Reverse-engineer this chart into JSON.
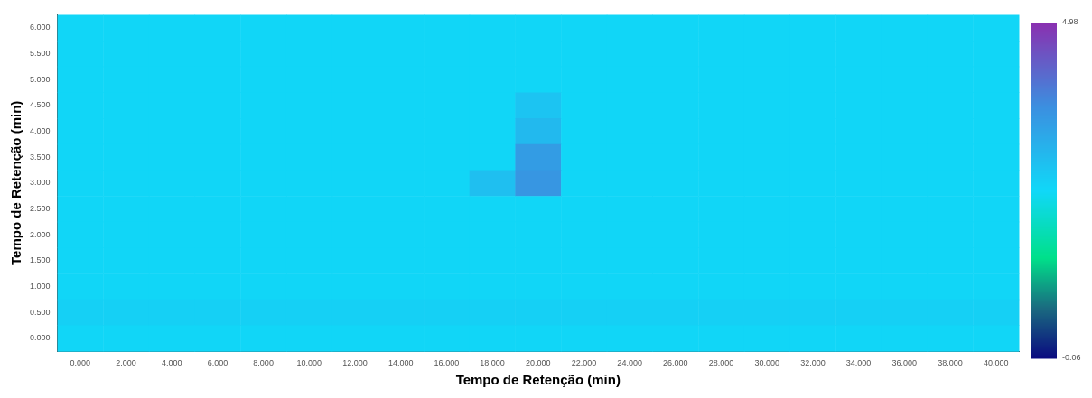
{
  "chart_data": {
    "type": "heatmap",
    "xlabel": "Tempo de Retenção (min)",
    "ylabel": "Tempo de Retenção (min)",
    "categories": [
      "0.000",
      "2.000",
      "4.000",
      "6.000",
      "8.000",
      "10.000",
      "12.000",
      "14.000",
      "16.000",
      "18.000",
      "20.000",
      "22.000",
      "24.000",
      "26.000",
      "28.000",
      "30.000",
      "32.000",
      "34.000",
      "36.000",
      "38.000",
      "40.000"
    ],
    "y_categories": [
      "6.000",
      "5.500",
      "5.000",
      "4.500",
      "4.000",
      "3.500",
      "3.000",
      "2.500",
      "2.000",
      "1.500",
      "1.000",
      "0.500",
      "0.000"
    ],
    "clim": [
      -0.06,
      4.98
    ],
    "cticks": [
      -0.06,
      4.98
    ],
    "cells": [
      [
        2.5,
        2.5,
        2.5,
        2.5,
        2.5,
        2.5,
        2.5,
        2.5,
        2.5,
        2.5,
        2.5,
        2.5,
        2.5,
        2.5,
        2.5,
        2.5,
        2.5,
        2.5,
        2.5,
        2.5,
        2.5
      ],
      [
        2.5,
        2.5,
        2.5,
        2.5,
        2.5,
        2.5,
        2.5,
        2.5,
        2.5,
        2.5,
        2.5,
        2.5,
        2.5,
        2.5,
        2.5,
        2.5,
        2.5,
        2.5,
        2.5,
        2.5,
        2.5
      ],
      [
        2.5,
        2.5,
        2.5,
        2.5,
        2.5,
        2.5,
        2.5,
        2.5,
        2.5,
        2.5,
        2.5,
        2.5,
        2.5,
        2.5,
        2.5,
        2.5,
        2.5,
        2.5,
        2.5,
        2.5,
        2.5
      ],
      [
        2.5,
        2.5,
        2.5,
        2.5,
        2.5,
        2.5,
        2.5,
        2.5,
        2.5,
        2.5,
        2.8,
        2.5,
        2.5,
        2.5,
        2.5,
        2.5,
        2.5,
        2.5,
        2.5,
        2.5,
        2.5
      ],
      [
        2.5,
        2.5,
        2.5,
        2.5,
        2.5,
        2.5,
        2.5,
        2.5,
        2.5,
        2.5,
        3.0,
        2.5,
        2.5,
        2.5,
        2.5,
        2.5,
        2.5,
        2.5,
        2.5,
        2.5,
        2.5
      ],
      [
        2.5,
        2.5,
        2.5,
        2.5,
        2.5,
        2.5,
        2.5,
        2.5,
        2.5,
        2.5,
        3.5,
        2.5,
        2.5,
        2.5,
        2.5,
        2.5,
        2.5,
        2.5,
        2.5,
        2.5,
        2.5
      ],
      [
        2.5,
        2.5,
        2.5,
        2.5,
        2.5,
        2.5,
        2.5,
        2.5,
        2.5,
        2.9,
        3.6,
        2.5,
        2.5,
        2.5,
        2.5,
        2.5,
        2.5,
        2.5,
        2.5,
        2.5,
        2.5
      ],
      [
        2.5,
        2.5,
        2.5,
        2.5,
        2.5,
        2.5,
        2.5,
        2.5,
        2.5,
        2.5,
        2.5,
        2.5,
        2.5,
        2.5,
        2.5,
        2.5,
        2.5,
        2.5,
        2.5,
        2.5,
        2.5
      ],
      [
        2.5,
        2.5,
        2.5,
        2.5,
        2.5,
        2.5,
        2.5,
        2.5,
        2.5,
        2.5,
        2.5,
        2.5,
        2.5,
        2.5,
        2.5,
        2.5,
        2.5,
        2.5,
        2.5,
        2.5,
        2.5
      ],
      [
        2.5,
        2.5,
        2.5,
        2.5,
        2.5,
        2.5,
        2.5,
        2.5,
        2.5,
        2.5,
        2.5,
        2.5,
        2.5,
        2.5,
        2.5,
        2.5,
        2.5,
        2.5,
        2.5,
        2.5,
        2.5
      ],
      [
        2.5,
        2.5,
        2.5,
        2.5,
        2.5,
        2.5,
        2.5,
        2.5,
        2.5,
        2.5,
        2.5,
        2.5,
        2.5,
        2.5,
        2.5,
        2.5,
        2.5,
        2.5,
        2.5,
        2.5,
        2.5
      ],
      [
        2.6,
        2.6,
        2.6,
        2.6,
        2.6,
        2.6,
        2.6,
        2.6,
        2.6,
        2.6,
        2.6,
        2.6,
        2.6,
        2.6,
        2.6,
        2.6,
        2.6,
        2.6,
        2.6,
        2.6,
        2.6
      ],
      [
        2.5,
        2.5,
        2.5,
        2.5,
        2.5,
        2.5,
        2.5,
        2.5,
        2.5,
        2.5,
        2.5,
        2.5,
        2.5,
        2.5,
        2.5,
        2.5,
        2.5,
        2.5,
        2.5,
        2.5,
        2.5
      ]
    ]
  }
}
